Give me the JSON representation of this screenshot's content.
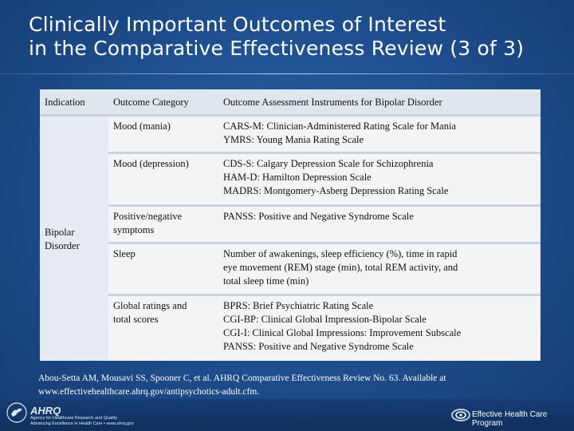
{
  "title": {
    "line1": "Clinically Important Outcomes of Interest",
    "line2": "in the Comparative Effectiveness Review (3 of 3)"
  },
  "table": {
    "headers": {
      "indication": "Indication",
      "category": "Outcome Category",
      "instruments": "Outcome Assessment Instruments for Bipolar Disorder"
    },
    "indication": {
      "line1": "Bipolar",
      "line2": "Disorder"
    },
    "rows": [
      {
        "category": [
          "Mood (mania)"
        ],
        "instruments": [
          "CARS-M: Clinician-Administered Rating Scale for Mania",
          "YMRS: Young Mania Rating Scale"
        ]
      },
      {
        "category": [
          "Mood (depression)"
        ],
        "instruments": [
          "CDS-S: Calgary Depression Scale for Schizophrenia",
          "HAM-D: Hamilton Depression Scale",
          "MADRS: Montgomery-Asberg Depression Rating Scale"
        ]
      },
      {
        "category": [
          "Positive/negative",
          "symptoms"
        ],
        "instruments": [
          "PANSS: Positive and Negative Syndrome Scale"
        ]
      },
      {
        "category": [
          "Sleep"
        ],
        "instruments": [
          "Number of awakenings, sleep efficiency (%), time in rapid",
          "eye movement (REM) stage (min), total REM activity, and",
          "total sleep time (min)"
        ]
      },
      {
        "category": [
          "Global ratings and",
          "total scores"
        ],
        "instruments": [
          "BPRS: Brief Psychiatric Rating Scale",
          "CGI-BP: Clinical Global Impression-Bipolar Scale",
          "CGI-I: Clinical Global Impressions: Improvement Subscale",
          "PANSS: Positive and Negative Syndrome Scale"
        ]
      }
    ]
  },
  "citation": {
    "line1": "Abou-Setta AM, Mousavi SS, Spooner C, et al. AHRQ Comparative Effectiveness Review No. 63. Available at",
    "line2": "www.effectivehealthcare.ahrq.gov/antipsychotics-adult.cfm."
  },
  "footer": {
    "ahrq_name": "AHRQ",
    "ahrq_tagline1": "Agency for Healthcare Research and Quality",
    "ahrq_tagline2": "Advancing Excellence in Health Care • www.ahrq.gov",
    "program_name": "Effective Health Care Program"
  },
  "colors": {
    "background": "#1d4d8c",
    "header_row": "#dfe6ee",
    "cell": "#f3f4f6",
    "divider": "#c7d2de"
  }
}
